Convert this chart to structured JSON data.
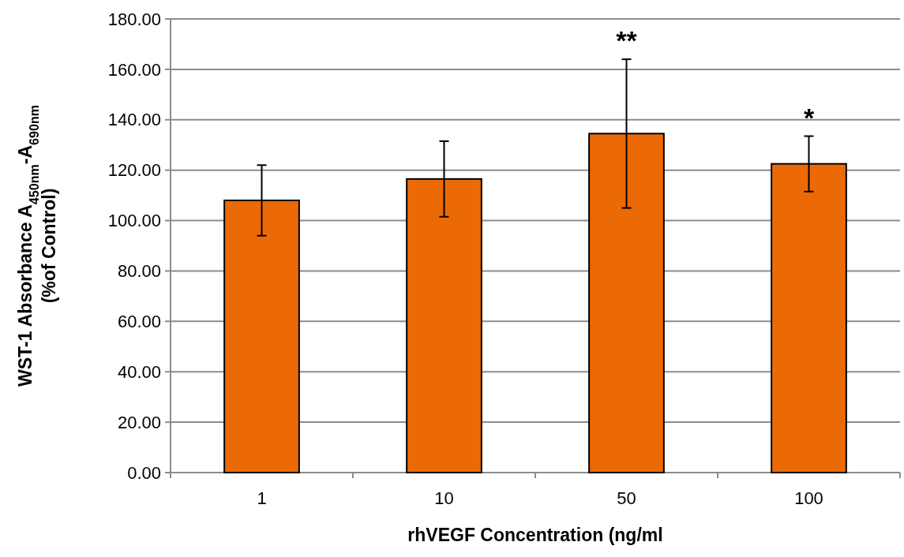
{
  "chart_data": {
    "type": "bar",
    "xlabel": "rhVEGF Concentration (ng/ml",
    "ylabel": "WST-1 Absorbance A$_{450nm}$-A$_{690nm}$\n(%of Control)",
    "categories": [
      "1",
      "10",
      "50",
      "100"
    ],
    "values": [
      108,
      116.5,
      134.5,
      122.5
    ],
    "errors": [
      14,
      15,
      29.5,
      11
    ],
    "color": "#eb6a06",
    "ylim": [
      0,
      180
    ],
    "yticks": [
      {
        "value": 0,
        "label": "0.00"
      },
      {
        "value": 20,
        "label": "20.00"
      },
      {
        "value": 40,
        "label": "40.00"
      },
      {
        "value": 60,
        "label": "60.00"
      },
      {
        "value": 80,
        "label": "80.00"
      },
      {
        "value": 100,
        "label": "100.00"
      },
      {
        "value": 120,
        "label": "120.00"
      },
      {
        "value": 140,
        "label": "140.00"
      },
      {
        "value": 160,
        "label": "160.00"
      },
      {
        "value": 180,
        "label": "180.00"
      }
    ],
    "grid": "y",
    "annotations": [
      "**",
      "*"
    ]
  }
}
